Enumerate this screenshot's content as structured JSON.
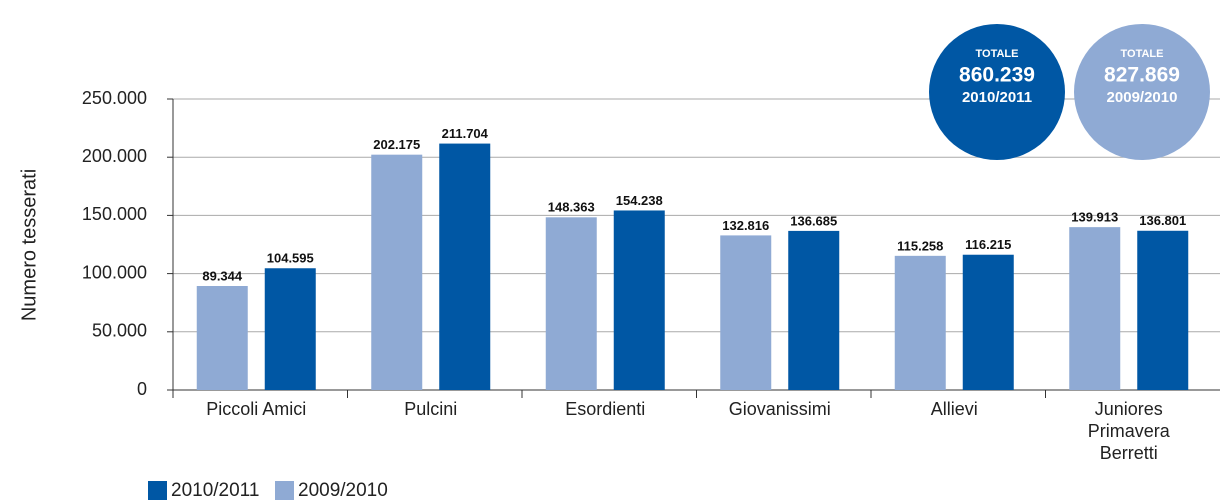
{
  "chart_data": {
    "type": "bar",
    "y_label": "Numero tesserati",
    "categories": [
      "Piccoli Amici",
      "Pulcini",
      "Esordienti",
      "Giovanissimi",
      "Allievi",
      "Juniores\nPrimavera\nBerretti"
    ],
    "series": [
      {
        "name": "2010/2011",
        "color": "#0057a4",
        "values": [
          104595,
          211704,
          154238,
          136685,
          116215,
          136801
        ],
        "value_labels": [
          "104.595",
          "211.704",
          "154.238",
          "136.685",
          "116.215",
          "136.801"
        ]
      },
      {
        "name": "2009/2010",
        "color": "#8faad4",
        "values": [
          89344,
          202175,
          148363,
          132816,
          115258,
          139913
        ],
        "value_labels": [
          "89.344",
          "202.175",
          "148.363",
          "132.816",
          "115.258",
          "139.913"
        ]
      }
    ],
    "ylim": [
      0,
      250000
    ],
    "yticks": [
      0,
      {
        "value": 50000,
        "label": "50.000"
      },
      {
        "value": 100000,
        "label": "100.000"
      },
      {
        "value": 150000,
        "label": "150.000"
      },
      {
        "value": 200000,
        "label": "200.000"
      },
      {
        "value": 250000,
        "label": "250.000"
      }
    ],
    "grid": true,
    "legend": "bottom-left",
    "totals": [
      {
        "title": "TOTALE",
        "text": "860.239",
        "period": "2010/2011",
        "color": "#0057a4"
      },
      {
        "title": "TOTALE",
        "text": "827.869",
        "period": "2009/2010",
        "color": "#8faad4"
      }
    ]
  }
}
